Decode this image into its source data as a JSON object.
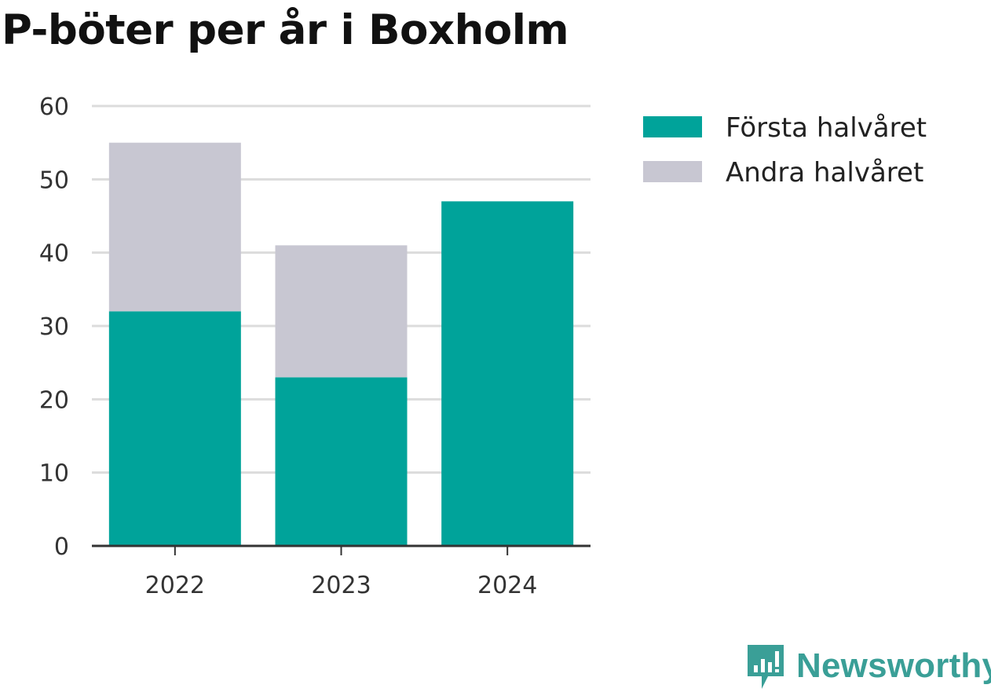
{
  "title": "P-böter per år i Boxholm",
  "brand": {
    "name": "Newsworthy",
    "icon": "newsworthy-logo-icon",
    "color": "#3a9f97"
  },
  "chart_data": {
    "type": "bar",
    "stacked": true,
    "title": "P-böter per år i Boxholm",
    "xlabel": "",
    "ylabel": "",
    "categories": [
      "2022",
      "2023",
      "2024"
    ],
    "series": [
      {
        "name": "Första halvåret",
        "color": "#00a39a",
        "values": [
          32,
          23,
          47
        ]
      },
      {
        "name": "Andra halvåret",
        "color": "#c8c7d2",
        "values": [
          23,
          18,
          0
        ]
      }
    ],
    "ylim": [
      0,
      60
    ],
    "yticks": [
      "0",
      "10",
      "20",
      "30",
      "40",
      "50",
      "60"
    ],
    "grid": true,
    "legend": "top-right"
  }
}
